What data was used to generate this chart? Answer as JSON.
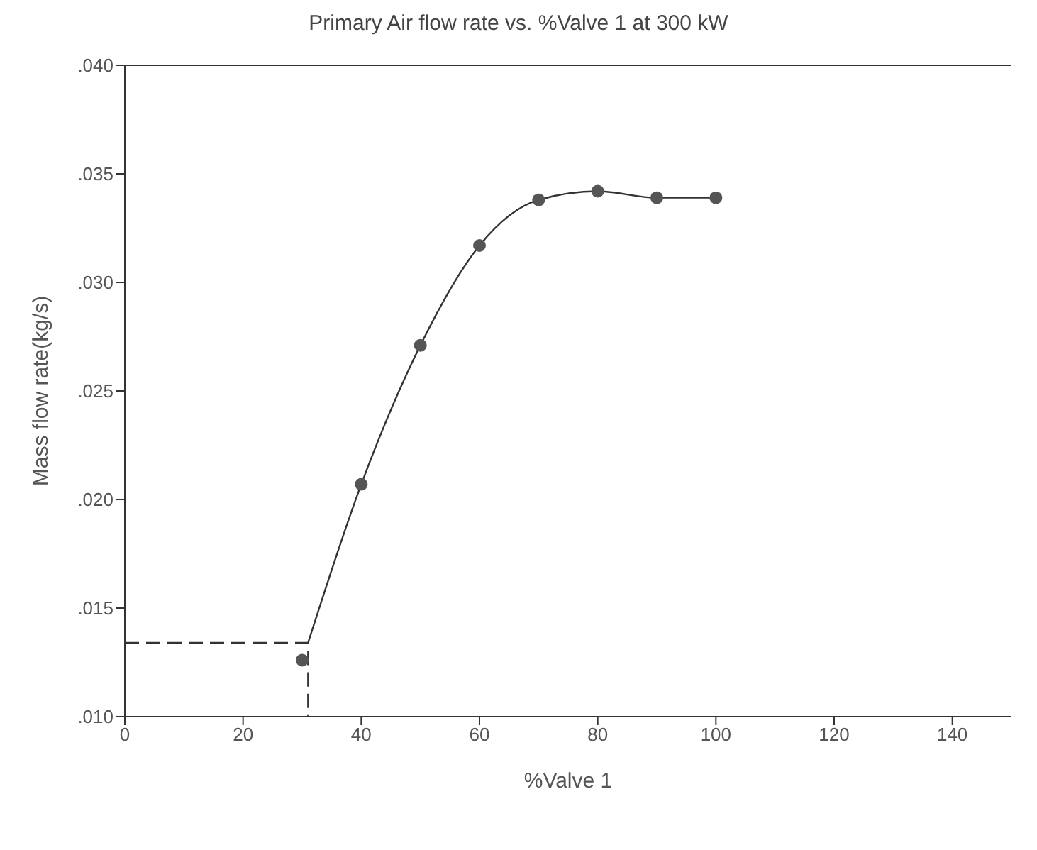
{
  "chart_data": {
    "type": "scatter",
    "title": "Primary Air flow rate vs. %Valve 1 at 300 kW",
    "xlabel": "%Valve 1",
    "ylabel": "Mass flow rate(kg/s)",
    "xlim": [
      0,
      150
    ],
    "xticks": [
      0,
      20,
      40,
      60,
      80,
      100,
      120,
      140
    ],
    "ylim": [
      0.01,
      0.04
    ],
    "yticks": [
      {
        "value": 0.01,
        "label": ".010"
      },
      {
        "value": 0.015,
        "label": ".015"
      },
      {
        "value": 0.02,
        "label": ".020"
      },
      {
        "value": 0.025,
        "label": ".025"
      },
      {
        "value": 0.03,
        "label": ".030"
      },
      {
        "value": 0.035,
        "label": ".035"
      },
      {
        "value": 0.04,
        "label": ".040"
      }
    ],
    "grid": false,
    "legend": false,
    "series": [
      {
        "marker": "circle",
        "color": "#555555",
        "x": [
          30,
          40,
          50,
          60,
          70,
          80,
          90,
          100
        ],
        "values": [
          0.0126,
          0.0207,
          0.0271,
          0.0317,
          0.0338,
          0.0342,
          0.0339,
          0.0339
        ]
      },
      {
        "type": "line",
        "marker": "none",
        "line_style": "solid",
        "color": "#333333",
        "x": [
          31,
          40,
          50,
          60,
          70,
          80,
          90,
          100
        ],
        "values": [
          0.0134,
          0.0207,
          0.0271,
          0.0317,
          0.0338,
          0.0342,
          0.0339,
          0.0339
        ]
      },
      {
        "type": "line",
        "marker": "none",
        "line_style": "dashed",
        "color": "#333333",
        "x": [
          0,
          31,
          31
        ],
        "values": [
          0.0134,
          0.0134,
          0.01
        ]
      }
    ]
  }
}
